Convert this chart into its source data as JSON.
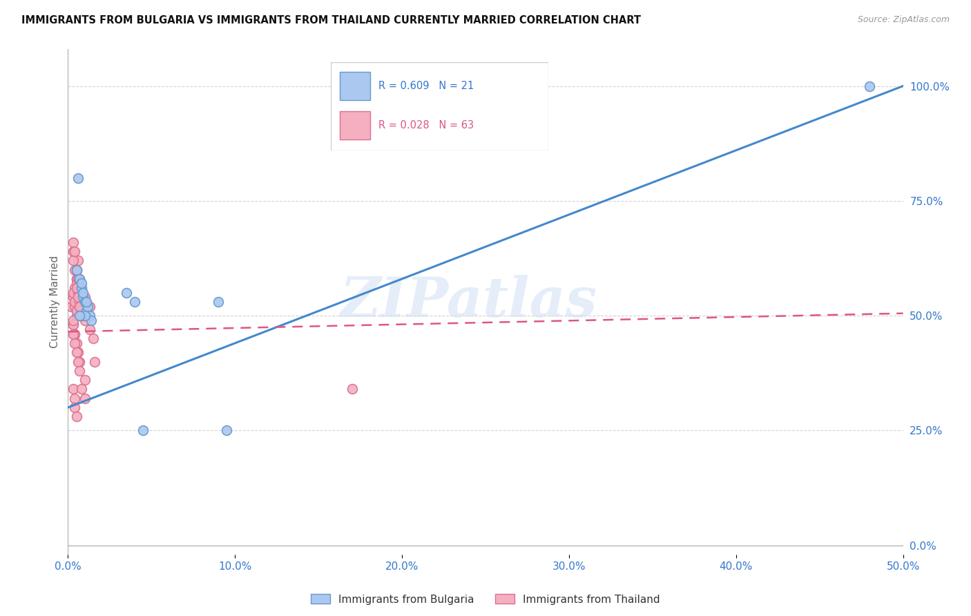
{
  "title": "IMMIGRANTS FROM BULGARIA VS IMMIGRANTS FROM THAILAND CURRENTLY MARRIED CORRELATION CHART",
  "source": "Source: ZipAtlas.com",
  "ylabel": "Currently Married",
  "xlim": [
    0.0,
    0.5
  ],
  "ylim": [
    0.0,
    1.05
  ],
  "ytick_labels": [
    "0.0%",
    "25.0%",
    "50.0%",
    "75.0%",
    "100.0%"
  ],
  "ytick_values": [
    0.0,
    0.25,
    0.5,
    0.75,
    1.0
  ],
  "xtick_labels": [
    "0.0%",
    "10.0%",
    "20.0%",
    "30.0%",
    "40.0%",
    "50.0%"
  ],
  "xtick_values": [
    0.0,
    0.1,
    0.2,
    0.3,
    0.4,
    0.5
  ],
  "bulgaria_color": "#aac8f0",
  "bulgaria_edge": "#6699cc",
  "thailand_color": "#f4afc0",
  "thailand_edge": "#dd7090",
  "line_bulgaria_color": "#4488cc",
  "line_thailand_color": "#dd5588",
  "line_thailand_dash": [
    6,
    4
  ],
  "watermark": "ZIPatlas",
  "bulgaria_line_x0": 0.0,
  "bulgaria_line_y0": 0.3,
  "bulgaria_line_x1": 0.5,
  "bulgaria_line_y1": 1.0,
  "thailand_line_x0": 0.0,
  "thailand_line_y0": 0.465,
  "thailand_line_x1": 0.5,
  "thailand_line_y1": 0.505,
  "bulgaria_x": [
    0.005,
    0.007,
    0.008,
    0.009,
    0.01,
    0.011,
    0.012,
    0.013,
    0.014,
    0.008,
    0.01,
    0.009,
    0.011,
    0.035,
    0.04,
    0.045,
    0.09,
    0.095,
    0.48,
    0.006,
    0.007
  ],
  "bulgaria_y": [
    0.6,
    0.58,
    0.56,
    0.54,
    0.53,
    0.51,
    0.52,
    0.5,
    0.49,
    0.57,
    0.5,
    0.55,
    0.53,
    0.55,
    0.53,
    0.25,
    0.53,
    0.25,
    1.0,
    0.8,
    0.5
  ],
  "thailand_x": [
    0.002,
    0.003,
    0.004,
    0.005,
    0.003,
    0.004,
    0.005,
    0.006,
    0.007,
    0.003,
    0.004,
    0.005,
    0.006,
    0.007,
    0.004,
    0.005,
    0.006,
    0.007,
    0.008,
    0.003,
    0.004,
    0.005,
    0.006,
    0.007,
    0.008,
    0.01,
    0.003,
    0.004,
    0.005,
    0.003,
    0.005,
    0.006,
    0.007,
    0.008,
    0.01,
    0.013,
    0.015,
    0.003,
    0.005,
    0.006,
    0.008,
    0.01,
    0.013,
    0.016,
    0.003,
    0.004,
    0.005,
    0.006,
    0.007,
    0.008,
    0.003,
    0.004,
    0.005,
    0.006,
    0.007,
    0.01,
    0.003,
    0.004,
    0.004,
    0.005,
    0.17,
    0.008,
    0.01
  ],
  "thailand_y": [
    0.52,
    0.54,
    0.56,
    0.5,
    0.48,
    0.46,
    0.6,
    0.62,
    0.58,
    0.64,
    0.6,
    0.58,
    0.56,
    0.54,
    0.52,
    0.58,
    0.56,
    0.54,
    0.5,
    0.48,
    0.46,
    0.44,
    0.42,
    0.4,
    0.52,
    0.5,
    0.55,
    0.53,
    0.51,
    0.49,
    0.57,
    0.55,
    0.53,
    0.51,
    0.49,
    0.47,
    0.45,
    0.62,
    0.6,
    0.58,
    0.56,
    0.54,
    0.52,
    0.4,
    0.66,
    0.64,
    0.56,
    0.54,
    0.52,
    0.5,
    0.46,
    0.44,
    0.42,
    0.4,
    0.38,
    0.36,
    0.34,
    0.32,
    0.3,
    0.28,
    0.34,
    0.34,
    0.32
  ]
}
